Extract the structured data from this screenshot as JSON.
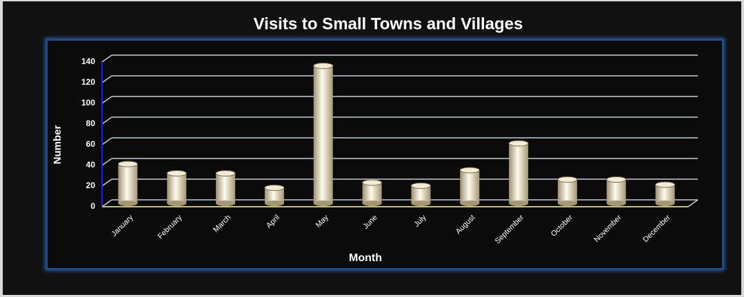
{
  "chart_data": {
    "type": "bar",
    "title": "Visits to Small Towns and Villages",
    "x_label": "Month",
    "y_label": "Number",
    "categories": [
      "January",
      "February",
      "March",
      "April",
      "May",
      "June",
      "July",
      "August",
      "September",
      "October",
      "November",
      "December"
    ],
    "values": [
      38,
      29,
      29,
      15,
      133,
      20,
      17,
      32,
      58,
      23,
      23,
      18
    ],
    "color": "#f3ecd2",
    "ylim": [
      0,
      140
    ],
    "yticks": [
      0,
      20,
      40,
      60,
      80,
      100,
      120,
      140
    ],
    "grid": true
  }
}
